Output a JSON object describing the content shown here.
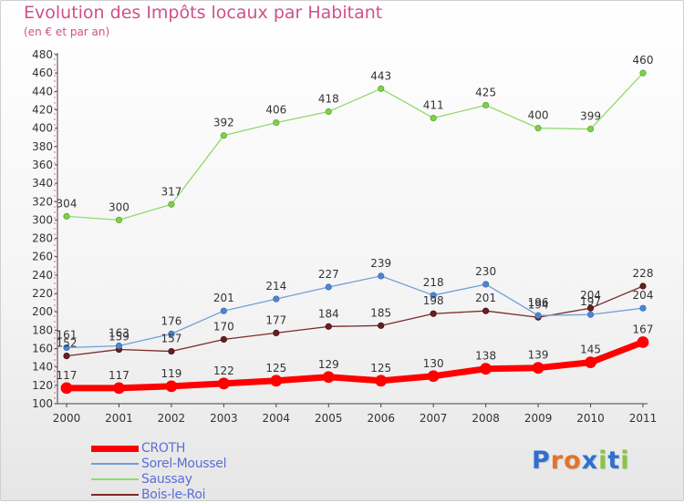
{
  "title": "Evolution des Impôts locaux par Habitant",
  "subtitle": "(en € et par an)",
  "logo": {
    "text": "Proxiti",
    "letters": [
      "P",
      "r",
      "o",
      "x",
      "i",
      "t",
      "i"
    ],
    "colors": [
      "#2f6fd0",
      "#e2732a",
      "#e2732a",
      "#2f6fd0",
      "#8bc440",
      "#2f6fd0",
      "#8bc440"
    ]
  },
  "chart_data": {
    "type": "line",
    "categories": [
      "2000",
      "2001",
      "2002",
      "2003",
      "2004",
      "2005",
      "2006",
      "2007",
      "2008",
      "2009",
      "2010",
      "2011"
    ],
    "title": "Evolution des Impôts locaux par Habitant",
    "subtitle": "(en € et par an)",
    "xlabel": "",
    "ylabel": "",
    "ylim": [
      100,
      480
    ],
    "yticks": [
      100,
      120,
      140,
      160,
      180,
      200,
      220,
      240,
      260,
      280,
      300,
      320,
      340,
      360,
      380,
      400,
      420,
      440,
      460,
      480
    ],
    "grid": false,
    "legend": "bottom-left",
    "series": [
      {
        "name": "CROTH",
        "color": "#ff0000",
        "values": [
          117,
          117,
          119,
          122,
          125,
          129,
          125,
          130,
          138,
          139,
          145,
          167
        ]
      },
      {
        "name": "Sorel-Moussel",
        "color": "#6fa0d8",
        "values": [
          161,
          163,
          176,
          201,
          214,
          227,
          239,
          218,
          230,
          196,
          197,
          204
        ]
      },
      {
        "name": "Saussay",
        "color": "#8fdb6a",
        "values": [
          304,
          300,
          317,
          392,
          406,
          418,
          443,
          411,
          425,
          400,
          399,
          460
        ]
      },
      {
        "name": "Bois-le-Roi",
        "color": "#7a2a2a",
        "values": [
          152,
          159,
          157,
          170,
          177,
          184,
          185,
          198,
          201,
          194,
          204,
          228
        ]
      }
    ]
  }
}
